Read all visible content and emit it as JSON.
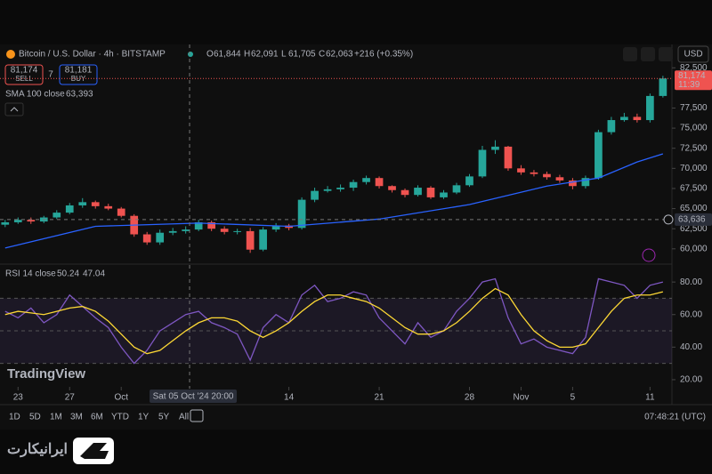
{
  "header": {
    "symbol": "Bitcoin / U.S. Dollar · 4h · BITSTAMP",
    "ohlc": [
      {
        "key": "O",
        "value": "61,844"
      },
      {
        "key": "H",
        "value": "62,091"
      },
      {
        "key": "L",
        "value": "61,705"
      },
      {
        "key": "C",
        "value": "62,063"
      }
    ],
    "change": "+216 (+0.35%)",
    "currency": "USD"
  },
  "trade": {
    "sell_price": "81,174",
    "sell": "SELL",
    "spread": "7",
    "buy_price": "81,181",
    "buy": "BUY"
  },
  "indicators": {
    "sma": {
      "label": "SMA 100 close",
      "value": "63,393"
    },
    "rsi": {
      "label": "RSI 14 close",
      "value": "50.24",
      "ma": "47.04"
    }
  },
  "price_label": {
    "price": "81,174",
    "countdown": "11:39"
  },
  "crosshair": {
    "price": "63,636",
    "time": "Sat 05 Oct '24  20:00"
  },
  "brand": "TradingView",
  "timeframes": [
    "1D",
    "5D",
    "1M",
    "3M",
    "6M",
    "YTD",
    "1Y",
    "5Y",
    "All"
  ],
  "clock": "07:48:21 (UTC)",
  "watermark": "ایرانیکارت",
  "chart_data": {
    "type": "candlestick",
    "x": [
      -1,
      0,
      1,
      2,
      3,
      4,
      5,
      6,
      7,
      8,
      9,
      10,
      11,
      12,
      13,
      14,
      15,
      16,
      17,
      18,
      19,
      20,
      21,
      22,
      23,
      24,
      25,
      26,
      27,
      28,
      29,
      30,
      31,
      32,
      33,
      34,
      35,
      36,
      37,
      38,
      39,
      40,
      41,
      42,
      43,
      44,
      45,
      46,
      47,
      48,
      49,
      50
    ],
    "open": [
      63000,
      63300,
      63600,
      63400,
      63900,
      64500,
      65400,
      65800,
      65300,
      65000,
      64100,
      61800,
      60800,
      62000,
      62200,
      62400,
      63300,
      62500,
      62100,
      62200,
      59900,
      62400,
      62900,
      62600,
      66100,
      67200,
      67400,
      67600,
      68300,
      68800,
      67800,
      67300,
      66700,
      67600,
      66400,
      67000,
      67900,
      69000,
      72300,
      72700,
      70000,
      69500,
      69300,
      68900,
      68500,
      67800,
      68800,
      74500,
      76000,
      76400,
      76000,
      79000
    ],
    "high": [
      63600,
      63900,
      63900,
      64100,
      64800,
      65700,
      66300,
      66000,
      65600,
      65200,
      64300,
      62100,
      62400,
      62600,
      62800,
      63600,
      63500,
      62800,
      62500,
      62600,
      62700,
      63200,
      63100,
      66400,
      67600,
      67800,
      68000,
      68600,
      69100,
      69000,
      67900,
      67500,
      67900,
      67800,
      67300,
      68200,
      69300,
      72800,
      73500,
      72800,
      70400,
      69800,
      69600,
      69200,
      68800,
      69100,
      74800,
      76400,
      76900,
      76800,
      79300,
      81500
    ],
    "low": [
      62700,
      63100,
      63100,
      63200,
      63700,
      64300,
      65100,
      65000,
      64800,
      63900,
      61500,
      60500,
      60500,
      61700,
      61900,
      62200,
      62200,
      61800,
      61800,
      59500,
      59700,
      62100,
      62300,
      62400,
      65800,
      67000,
      67100,
      67200,
      68000,
      67500,
      67000,
      66400,
      66500,
      66200,
      66200,
      66800,
      67700,
      68800,
      71800,
      69700,
      69200,
      69000,
      68600,
      68200,
      67400,
      67500,
      68600,
      74200,
      75800,
      75700,
      75700,
      78800
    ],
    "close": [
      63300,
      63600,
      63400,
      63900,
      64500,
      65400,
      65800,
      65300,
      65000,
      64100,
      61800,
      60800,
      62000,
      62200,
      62400,
      63300,
      62500,
      62100,
      62200,
      59900,
      62400,
      62900,
      62600,
      66100,
      67200,
      67400,
      67600,
      68300,
      68800,
      67800,
      67300,
      66700,
      67600,
      66400,
      67000,
      67900,
      69000,
      72300,
      72700,
      70000,
      69500,
      69300,
      68900,
      68500,
      67800,
      68800,
      74500,
      76000,
      76400,
      76000,
      79000,
      81174
    ],
    "up_color": "#26a69a",
    "down_color": "#ef5350",
    "sma": {
      "color": "#2962ff",
      "x": [
        -1,
        6,
        14,
        21,
        28,
        35,
        41,
        45,
        48,
        50
      ],
      "values": [
        60100,
        62800,
        63200,
        62800,
        63700,
        65500,
        67800,
        68800,
        70800,
        71800
      ]
    },
    "xlim": [
      -1.4,
      50.7
    ],
    "xticks": [
      {
        "value": 0,
        "label": "23"
      },
      {
        "value": 4,
        "label": "27"
      },
      {
        "value": 8,
        "label": "Oct"
      },
      {
        "value": 21,
        "label": "14"
      },
      {
        "value": 28,
        "label": "21"
      },
      {
        "value": 35,
        "label": "28"
      },
      {
        "value": 39,
        "label": "Nov"
      },
      {
        "value": 43,
        "label": "5"
      },
      {
        "value": 49,
        "label": "11"
      }
    ],
    "ylim": [
      58100,
      85400
    ],
    "yticks": [
      {
        "value": 60000,
        "label": "60,000"
      },
      {
        "value": 62500,
        "label": "62,500"
      },
      {
        "value": 65000,
        "label": "65,000"
      },
      {
        "value": 67500,
        "label": "67,500"
      },
      {
        "value": 70000,
        "label": "70,000"
      },
      {
        "value": 72500,
        "label": "72,500"
      },
      {
        "value": 75000,
        "label": "75,000"
      },
      {
        "value": 77500,
        "label": "77,500"
      },
      {
        "value": 82500,
        "label": "82,500"
      }
    ],
    "current": 81174,
    "crosshair_y": 63636,
    "crosshair_x": 13.3,
    "rsi": {
      "color": "#7e57c2",
      "ma_color": "#fdd835",
      "values": [
        62,
        58,
        64,
        55,
        60,
        72,
        65,
        58,
        52,
        40,
        30,
        38,
        50,
        55,
        60,
        62,
        55,
        52,
        48,
        32,
        52,
        60,
        55,
        72,
        78,
        68,
        70,
        74,
        72,
        58,
        50,
        42,
        55,
        46,
        50,
        62,
        70,
        80,
        82,
        58,
        42,
        45,
        40,
        38,
        36,
        46,
        82,
        80,
        78,
        70,
        78,
        80
      ],
      "ma": [
        60,
        62,
        61,
        60,
        62,
        64,
        65,
        62,
        56,
        48,
        40,
        36,
        38,
        44,
        50,
        55,
        58,
        58,
        56,
        50,
        46,
        50,
        55,
        62,
        68,
        72,
        72,
        70,
        68,
        64,
        58,
        52,
        48,
        48,
        50,
        55,
        62,
        70,
        76,
        72,
        60,
        50,
        44,
        40,
        40,
        42,
        52,
        62,
        70,
        72,
        72,
        74
      ],
      "ylim": [
        15.6,
        91
      ],
      "yticks": [
        {
          "value": 20,
          "label": "20.00"
        },
        {
          "value": 40,
          "label": "40.00"
        },
        {
          "value": 60,
          "label": "60.00"
        },
        {
          "value": 80,
          "label": "80.00"
        }
      ],
      "bands": [
        70,
        50,
        30
      ]
    }
  }
}
